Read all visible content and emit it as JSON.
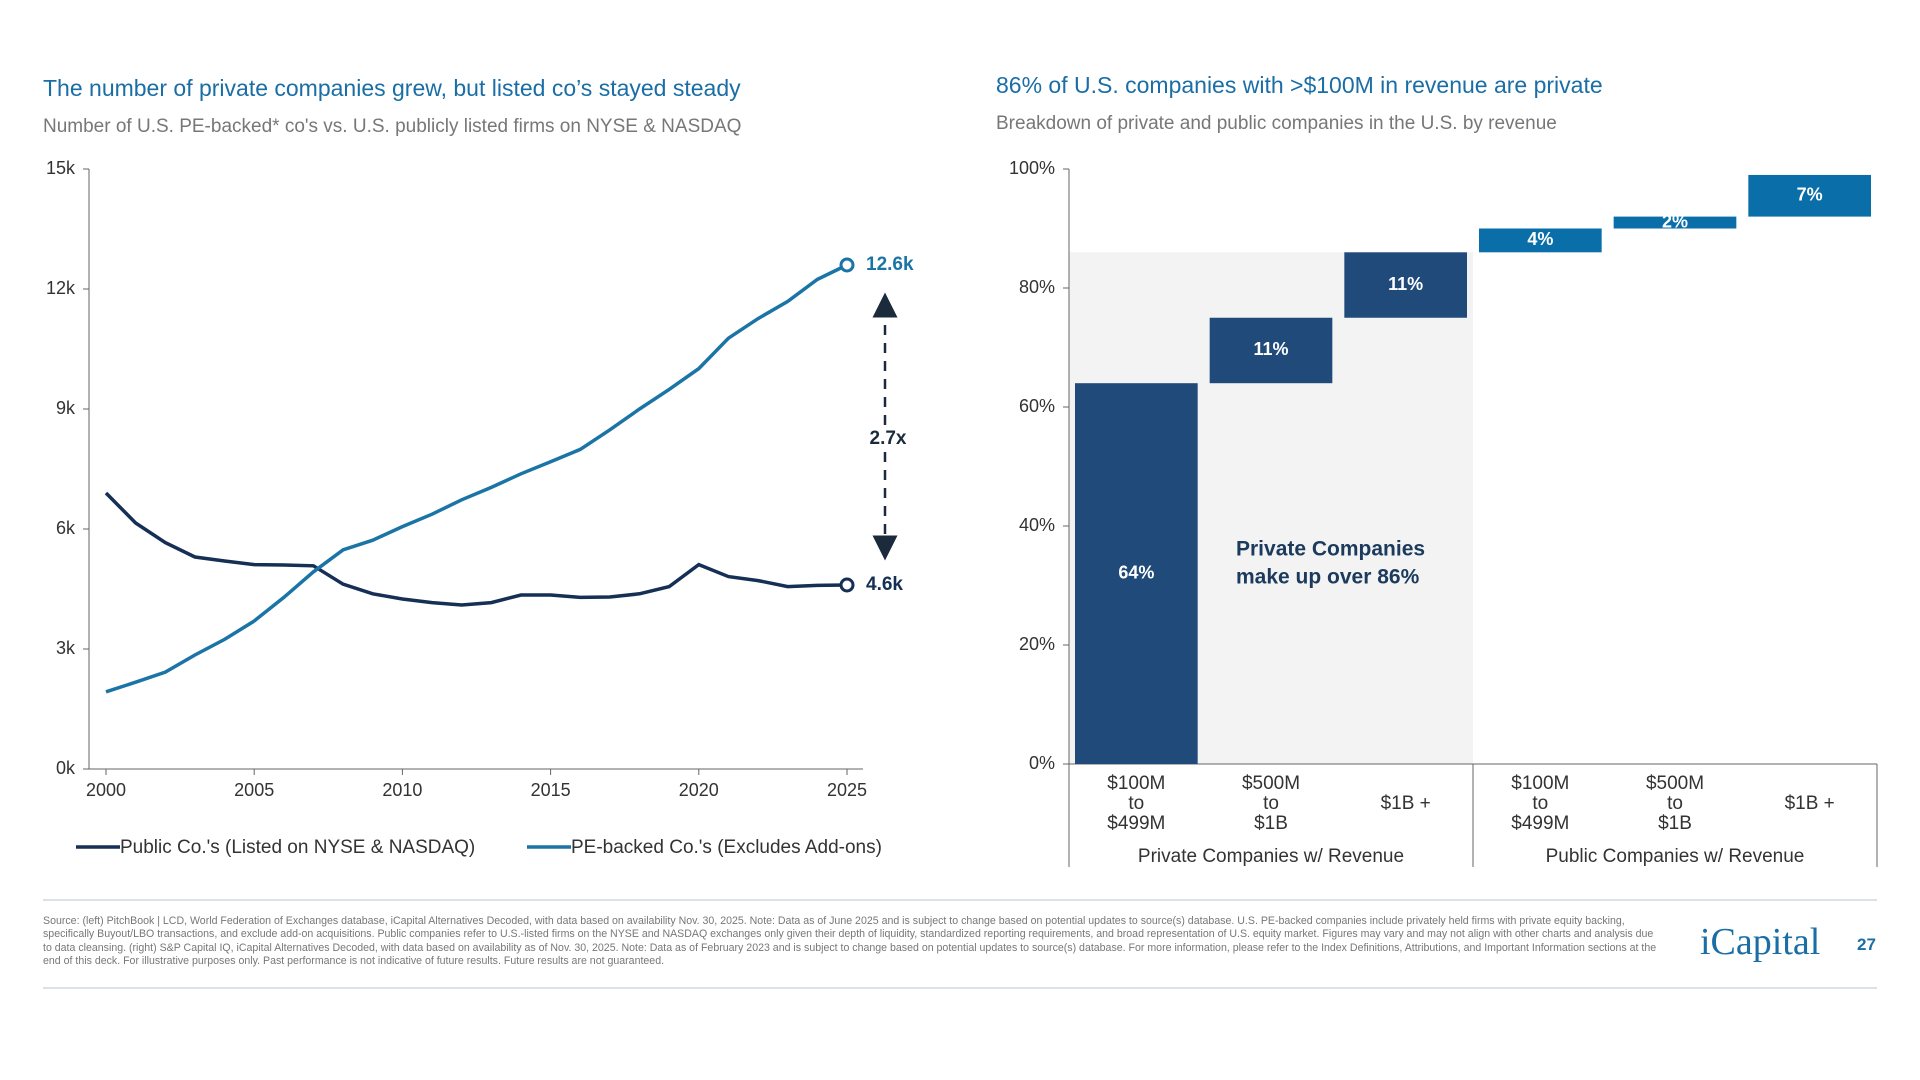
{
  "chart_data": [
    {
      "type": "line",
      "title": "The number of private companies grew, but listed co’s stayed steady",
      "subtitle": "Number of U.S. PE-backed* co's vs. U.S. publicly listed firms on NYSE & NASDAQ",
      "x": [
        2000,
        2001,
        2002,
        2003,
        2004,
        2005,
        2006,
        2007,
        2008,
        2009,
        2010,
        2011,
        2012,
        2013,
        2014,
        2015,
        2016,
        2017,
        2018,
        2019,
        2020,
        2021,
        2022,
        2023,
        2024,
        2025
      ],
      "xlim": [
        2000,
        2025
      ],
      "xticks": [
        2000,
        2005,
        2010,
        2015,
        2020,
        2025
      ],
      "ylim": [
        0,
        15000
      ],
      "yticks": [
        {
          "value": 0,
          "label": "0k"
        },
        {
          "value": 3000,
          "label": "3k"
        },
        {
          "value": 6000,
          "label": "6k"
        },
        {
          "value": 9000,
          "label": "9k"
        },
        {
          "value": 12000,
          "label": "12k"
        },
        {
          "value": 15000,
          "label": "15k"
        }
      ],
      "series": [
        {
          "name": "Public Co.'s (Listed on NYSE & NASDAQ)",
          "color": "#152f55",
          "values": [
            6900,
            6150,
            5660,
            5300,
            5200,
            5110,
            5100,
            5080,
            4620,
            4380,
            4250,
            4160,
            4100,
            4160,
            4350,
            4350,
            4290,
            4300,
            4380,
            4560,
            5110,
            4810,
            4710,
            4560,
            4590,
            4600
          ],
          "value_labels": [
            null,
            null,
            null,
            null,
            null,
            null,
            null,
            null,
            null,
            null,
            null,
            null,
            null,
            null,
            null,
            null,
            null,
            null,
            null,
            null,
            null,
            null,
            null,
            null,
            null,
            "4.6k"
          ]
        },
        {
          "name": "PE-backed Co.'s (Excludes Add-ons)",
          "color": "#1b74a6",
          "values": [
            1930,
            2170,
            2420,
            2850,
            3240,
            3700,
            4290,
            4930,
            5480,
            5720,
            6060,
            6370,
            6730,
            7040,
            7380,
            7680,
            7990,
            8480,
            9000,
            9490,
            10010,
            10770,
            11260,
            11690,
            12240,
            12600
          ],
          "value_labels": [
            null,
            null,
            null,
            null,
            null,
            null,
            null,
            null,
            null,
            null,
            null,
            null,
            null,
            null,
            null,
            null,
            null,
            null,
            null,
            null,
            null,
            null,
            null,
            null,
            null,
            "12.6k"
          ]
        }
      ],
      "annotation": "2.7x"
    },
    {
      "type": "waterfall",
      "title": "86% of U.S. companies with >$100M in revenue are private",
      "subtitle": "Breakdown of private and public companies in the U.S. by revenue",
      "ylim": [
        0,
        100
      ],
      "yticks": [
        {
          "value": 0,
          "label": "0%"
        },
        {
          "value": 20,
          "label": "20%"
        },
        {
          "value": 40,
          "label": "40%"
        },
        {
          "value": 60,
          "label": "60%"
        },
        {
          "value": 80,
          "label": "80%"
        },
        {
          "value": 100,
          "label": "100%"
        }
      ],
      "series": [
        {
          "name": "Private Companies w/ Revenue",
          "color": "#1f4a7a",
          "categories": [
            [
              "$100M",
              "to",
              "$499M"
            ],
            [
              "$500M",
              "to",
              "$1B"
            ],
            [
              "$1B +"
            ]
          ],
          "values": [
            64,
            11,
            11
          ],
          "value_labels": [
            "64%",
            "11%",
            "11%"
          ]
        },
        {
          "name": "Public Companies w/ Revenue",
          "color": "#0a6ea8",
          "categories": [
            [
              "$100M",
              "to",
              "$499M"
            ],
            [
              "$500M",
              "to",
              "$1B"
            ],
            [
              "$1B +"
            ]
          ],
          "values": [
            4,
            2,
            7
          ],
          "value_labels": [
            "4%",
            "2%",
            "7%"
          ]
        }
      ],
      "annotation": [
        "Private Companies",
        "make up over 86%"
      ]
    }
  ],
  "footnote": "Source: (left) PitchBook | LCD, World Federation of Exchanges database, iCapital Alternatives Decoded, with data based on availability Nov. 30, 2025. Note: Data as of June 2025 and is subject to change based on potential updates to source(s) database. U.S. PE-backed companies include privately held firms with private equity backing, specifically Buyout/LBO transactions, and exclude add-on acquisitions. Public companies refer to U.S.-listed firms on the NYSE and NASDAQ exchanges only given their depth of liquidity, standardized reporting requirements, and broad representation of U.S. equity market. Figures may vary and may not align with other charts and analysis due to data cleansing. (right) S&P Capital IQ, iCapital Alternatives Decoded, with data based on availability as of Nov. 30, 2025. Note: Data as of February 2023 and is subject to change based on potential updates to source(s) database. For more information, please refer to the Index Definitions, Attributions, and Important Information sections at the end of this deck. For illustrative purposes only. Past performance is not indicative of future results. Future results are not guaranteed.",
  "logo": "iCapital",
  "page_number": "27"
}
